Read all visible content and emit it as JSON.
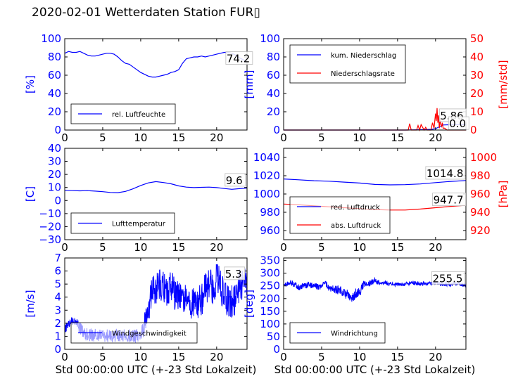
{
  "title": "2020-02-01 Wetterdaten Station FUR▯",
  "colors": {
    "blue": "#0000ff",
    "red": "#ff0000",
    "black": "#000000"
  },
  "chart_data": [
    {
      "id": "humidity",
      "type": "line",
      "xlim": [
        0,
        24
      ],
      "ylim": [
        0,
        100
      ],
      "xticks": [
        0,
        5,
        10,
        15,
        20
      ],
      "yticks": [
        0,
        20,
        40,
        60,
        80,
        100
      ],
      "ylabel": "[%]",
      "series": [
        {
          "name": "rel. Luftfeuchte",
          "color": "#0000ff",
          "x": [
            0,
            0.5,
            1,
            1.5,
            2,
            2.5,
            3,
            3.5,
            4,
            4.5,
            5,
            5.5,
            6,
            6.5,
            7,
            7.5,
            8,
            8.5,
            9,
            9.5,
            10,
            10.5,
            11,
            11.5,
            12,
            12.5,
            13,
            13.5,
            14,
            14.5,
            15,
            15.5,
            16,
            16.5,
            17,
            17.5,
            18,
            18.5,
            19,
            19.5,
            20,
            20.5,
            21,
            21.5,
            22,
            22.5,
            23,
            23.5,
            24
          ],
          "y": [
            84,
            86,
            85,
            85,
            86,
            84,
            82,
            81,
            81,
            82,
            83,
            84,
            84,
            83,
            80,
            76,
            73,
            72,
            69,
            66,
            63,
            61,
            59,
            58,
            58,
            59,
            60,
            61,
            63,
            64,
            66,
            73,
            78,
            79,
            80,
            80,
            81,
            80,
            81,
            82,
            83,
            84,
            85,
            85,
            84,
            82,
            79,
            77,
            74
          ]
        }
      ],
      "annotations": [
        {
          "text": "74.2",
          "x": 21.3,
          "y": 74.2
        }
      ],
      "legend": "lower-left"
    },
    {
      "id": "precip",
      "type": "line",
      "xlim": [
        0,
        24
      ],
      "ylim": [
        0,
        100
      ],
      "y2lim": [
        0,
        50
      ],
      "xticks": [
        0,
        5,
        10,
        15,
        20
      ],
      "yticks": [
        0,
        20,
        40,
        60,
        80,
        100
      ],
      "y2ticks": [
        0,
        10,
        20,
        30,
        40,
        50
      ],
      "ylabel": "[mm]",
      "y2label": "[mm/std]",
      "series": [
        {
          "name": "kum. Niederschlag",
          "color": "#0000ff",
          "axis": "left",
          "x": [
            0,
            16,
            18,
            19.5,
            20,
            20.5,
            21,
            22,
            24
          ],
          "y": [
            0,
            0,
            0.3,
            0.8,
            1.5,
            3.5,
            5.5,
            5.86,
            5.86
          ]
        },
        {
          "name": "Niederschlagsrate",
          "color": "#ff0000",
          "axis": "right",
          "x": [
            0,
            16.4,
            16.6,
            16.8,
            17,
            17.5,
            17.7,
            17.9,
            18.1,
            18.5,
            18.7,
            18.9,
            19.1,
            19.4,
            19.6,
            19.8,
            20,
            20.1,
            20.2,
            20.3,
            20.4,
            20.5,
            20.6,
            20.7,
            20.8,
            20.9,
            21,
            21.2,
            21.5,
            22,
            24
          ],
          "y": [
            0,
            0,
            3.5,
            0,
            0,
            0,
            2.5,
            0,
            3,
            0,
            1.5,
            0,
            0,
            0,
            4,
            1,
            9,
            5,
            12,
            4,
            8,
            1,
            6,
            3,
            2,
            4,
            1,
            1,
            0,
            0,
            0
          ]
        }
      ],
      "annotations": [
        {
          "text": "5.86",
          "x": 20.6,
          "y": 11.6
        },
        {
          "text": "0.0",
          "x": 21.8,
          "y": 3.0
        }
      ],
      "legend": "upper-left"
    },
    {
      "id": "temperature",
      "type": "line",
      "xlim": [
        0,
        24
      ],
      "ylim": [
        -30,
        40
      ],
      "xticks": [
        0,
        5,
        10,
        15,
        20
      ],
      "yticks": [
        -30,
        -20,
        -10,
        0,
        10,
        20,
        30,
        40
      ],
      "ylabel": "[C]",
      "series": [
        {
          "name": "Lufttemperatur",
          "color": "#0000ff",
          "x": [
            0,
            1,
            2,
            3,
            4,
            5,
            6,
            7,
            8,
            9,
            10,
            11,
            12,
            13,
            14,
            15,
            16,
            17,
            18,
            19,
            20,
            21,
            22,
            23,
            24
          ],
          "y": [
            7.8,
            7.6,
            7.4,
            7.6,
            7.2,
            6.8,
            6.2,
            6,
            7,
            9,
            11.5,
            13.5,
            14.5,
            13.8,
            12.8,
            11.2,
            10.3,
            9.9,
            10.1,
            10.3,
            9.9,
            9.2,
            8.6,
            9.1,
            9.6
          ]
        }
      ],
      "annotations": [
        {
          "text": "9.6",
          "x": 21.2,
          "y": 12.6
        }
      ],
      "legend": "lower-left"
    },
    {
      "id": "pressure",
      "type": "line",
      "xlim": [
        0,
        24
      ],
      "ylim": [
        950,
        1050
      ],
      "y2lim": [
        910,
        1010
      ],
      "xticks": [
        0,
        5,
        10,
        15,
        20
      ],
      "yticks": [
        960,
        980,
        1000,
        1020,
        1040
      ],
      "y2ticks": [
        920,
        940,
        960,
        980,
        1000
      ],
      "ylabel": "",
      "y2label": "[hPa]",
      "series": [
        {
          "name": "red. Luftdruck",
          "color": "#0000ff",
          "axis": "left",
          "x": [
            0,
            2,
            4,
            6,
            8,
            10,
            12,
            14,
            16,
            18,
            20,
            22,
            24
          ],
          "y": [
            1016.5,
            1015.5,
            1014.5,
            1014,
            1013,
            1012,
            1010.5,
            1010,
            1010.2,
            1011,
            1012.5,
            1013.8,
            1014.8
          ]
        },
        {
          "name": "abs. Luftdruck",
          "color": "#ff0000",
          "axis": "right",
          "x": [
            0,
            2,
            4,
            6,
            8,
            10,
            12,
            14,
            16,
            18,
            20,
            22,
            24
          ],
          "y": [
            949,
            948.2,
            947,
            946,
            945,
            944,
            943,
            942.5,
            942.5,
            943.5,
            945,
            946.5,
            947.7
          ]
        }
      ],
      "annotations": [
        {
          "text": "1014.8",
          "x": 18.8,
          "y": 1018.5
        },
        {
          "text": "947.7",
          "x": 19.7,
          "y": 989.5
        }
      ],
      "legend": "lower-left"
    },
    {
      "id": "wind_speed",
      "type": "line",
      "xlim": [
        0,
        24
      ],
      "ylim": [
        0,
        7
      ],
      "xticks": [
        0,
        5,
        10,
        15,
        20
      ],
      "yticks": [
        0,
        1,
        2,
        3,
        4,
        5,
        6,
        7
      ],
      "ylabel": "[m/s]",
      "xlabel": "Std 00:00:00 UTC (+-23 Std Lokalzeit)",
      "series": [
        {
          "name": "Windgeschwindigkeit",
          "color": "#0000ff"
        }
      ],
      "envelope": {
        "x": [
          0,
          0.5,
          1,
          1.5,
          2,
          3,
          4,
          5,
          6,
          7,
          8,
          9,
          10,
          10.5,
          11,
          11.5,
          12,
          12.5,
          13,
          13.5,
          14,
          14.5,
          15,
          15.5,
          16,
          16.5,
          17,
          17.5,
          18,
          18.5,
          19,
          19.5,
          20,
          20.5,
          21,
          21.5,
          22,
          22.5,
          23,
          23.5,
          24
        ],
        "base": [
          1.5,
          2,
          2.2,
          1.9,
          1.6,
          1.1,
          1.1,
          1.1,
          1.0,
          1.1,
          1.1,
          1.0,
          1.1,
          1.9,
          3.0,
          4.5,
          4.6,
          5.0,
          4.8,
          4.5,
          5.0,
          4.2,
          4.0,
          4.1,
          3.8,
          3.5,
          3.6,
          3.4,
          3.9,
          4.5,
          5.0,
          4.6,
          5.3,
          4.8,
          4.4,
          3.8,
          3.6,
          4.0,
          4.8,
          5.1,
          5.3
        ],
        "amp": [
          0.3,
          0.3,
          0.3,
          0.5,
          0.5,
          0.5,
          0.5,
          0.5,
          0.5,
          0.5,
          0.5,
          0.5,
          0.6,
          0.8,
          1.0,
          1.2,
          1.2,
          1.2,
          1.2,
          1.2,
          1.2,
          1.2,
          1.2,
          1.2,
          1.2,
          1.2,
          1.2,
          1.2,
          1.4,
          1.4,
          1.4,
          1.4,
          1.4,
          1.4,
          1.4,
          1.4,
          1.3,
          1.3,
          1.3,
          1.3,
          1.3
        ]
      },
      "annotations": [
        {
          "text": "5.3",
          "x": 21.1,
          "y": 5.5
        }
      ],
      "legend": "lower-left"
    },
    {
      "id": "wind_direction",
      "type": "line",
      "xlim": [
        0,
        24
      ],
      "ylim": [
        0,
        360
      ],
      "xticks": [
        0,
        5,
        10,
        15,
        20
      ],
      "yticks": [
        0,
        50,
        100,
        150,
        200,
        250,
        300,
        350
      ],
      "ylabel": "[deg]",
      "xlabel": "Std 00:00:00 UTC (+-23 Std Lokalzeit)",
      "series": [
        {
          "name": "Windrichtung",
          "color": "#0000ff"
        }
      ],
      "envelope": {
        "x": [
          0,
          1,
          2,
          3,
          4,
          5,
          5.5,
          6,
          6.5,
          7,
          7.5,
          8,
          8.5,
          9,
          9.5,
          10,
          10.5,
          11,
          11.5,
          12,
          12.5,
          13,
          14,
          15,
          16,
          17,
          18,
          19,
          20,
          21,
          22,
          23,
          24
        ],
        "base": [
          255,
          262,
          245,
          253,
          250,
          245,
          262,
          240,
          242,
          235,
          230,
          218,
          215,
          205,
          220,
          225,
          255,
          258,
          262,
          272,
          262,
          265,
          258,
          255,
          258,
          262,
          260,
          258,
          260,
          257,
          255,
          258,
          255
        ],
        "amp": [
          8,
          10,
          12,
          12,
          12,
          12,
          12,
          12,
          15,
          18,
          20,
          20,
          20,
          20,
          20,
          18,
          15,
          12,
          12,
          12,
          10,
          10,
          8,
          8,
          8,
          8,
          8,
          8,
          8,
          8,
          8,
          8,
          8
        ]
      },
      "annotations": [
        {
          "text": "255.5",
          "x": 19.6,
          "y": 265
        }
      ],
      "legend": "lower-left"
    }
  ]
}
